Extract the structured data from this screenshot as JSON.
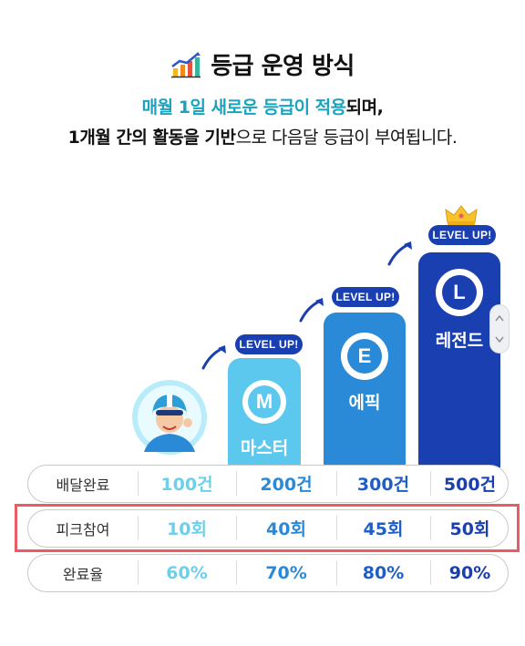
{
  "header": {
    "title": "등급 운영 방식",
    "title_icon": "rising-chart-icon",
    "sub1_highlight": "매월 1일 새로운 등급이 적용",
    "sub1_rest": "되며,",
    "sub2_bold": "1개월 간의 활동을 기반",
    "sub2_rest": "으로 다음달 등급이 부여됩니다."
  },
  "levels": {
    "level_up": "LEVEL UP!",
    "master": {
      "letter": "M",
      "name": "마스터",
      "color": "#5cc8ee"
    },
    "epic": {
      "letter": "E",
      "name": "에픽",
      "color": "#2a8ad8"
    },
    "legend": {
      "letter": "L",
      "name": "레전드",
      "color": "#1a3fb0"
    }
  },
  "table": {
    "rows": [
      {
        "label": "배달완료",
        "values": [
          "100건",
          "200건",
          "300건",
          "500건"
        ]
      },
      {
        "label": "피크참여",
        "values": [
          "10회",
          "40회",
          "45회",
          "50회"
        ]
      },
      {
        "label": "완료율",
        "values": [
          "60%",
          "70%",
          "80%",
          "90%"
        ]
      }
    ]
  },
  "colors": {
    "highlight_border": "#e85c63",
    "accent": "#1aa3c0"
  }
}
